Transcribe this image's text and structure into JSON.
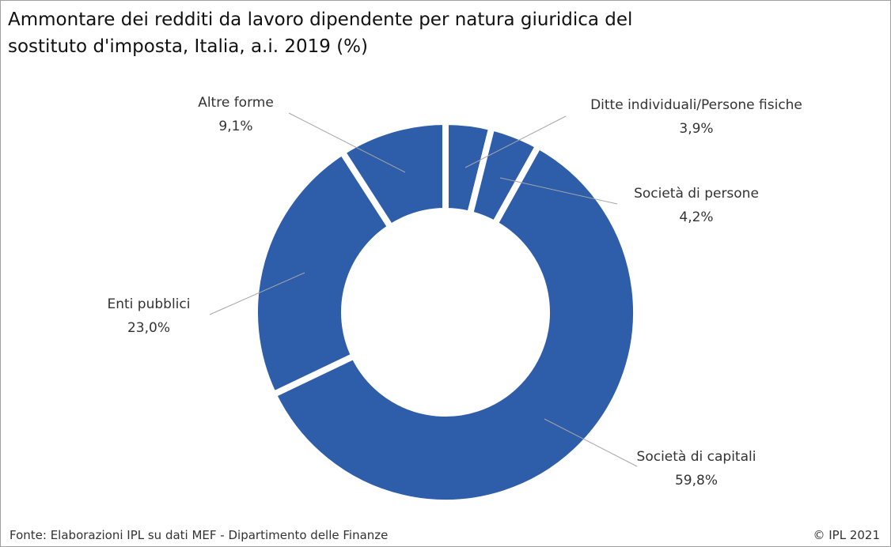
{
  "chart_data": {
    "type": "donut",
    "title": "Ammontare dei redditi da lavoro dipendente per natura giuridica del sostituto d'imposta, Italia,  a.i. 2019 (%)",
    "categories": [
      "Ditte individuali/Persone fisiche",
      "Società di persone",
      "Società di capitali",
      "Enti pubblici",
      "Altre forme"
    ],
    "values": [
      3.9,
      4.2,
      59.8,
      23.0,
      9.1
    ],
    "value_labels": [
      "3,9%",
      "4,2%",
      "59,8%",
      "23,0%",
      "9,1%"
    ],
    "color": "#2e5daa",
    "source": "Fonte: Elaborazioni IPL su dati MEF - Dipartimento delle Finanze",
    "credit": "© IPL 2021"
  }
}
